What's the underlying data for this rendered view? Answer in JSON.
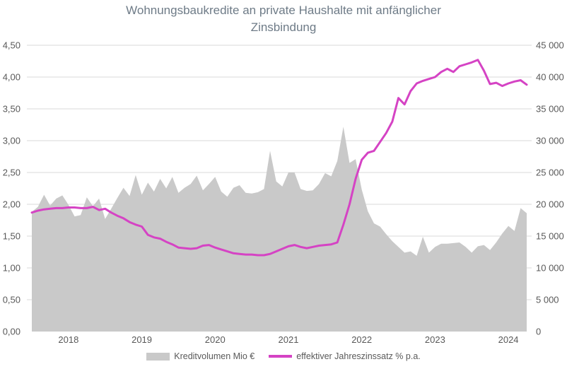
{
  "title": "Wohnungsbaukredite an private Haushalte mit anfänglicher Zinsbindung",
  "title_lines": [
    "Wohnungsbaukredite an private Haushalte mit anfänglicher",
    "Zinsbindung"
  ],
  "colors": {
    "area": "#c9c9c9",
    "line": "#d543c4",
    "grid": "#d9d9d9",
    "axis_text": "#595959",
    "title_text": "#6e7b87"
  },
  "legend": {
    "volume_label": "Kreditvolumen Mio €",
    "rate_label": "effektiver Jahreszinssatz % p.a.",
    "position": "bottom"
  },
  "chart_data": {
    "type": "combo-area-line",
    "x": {
      "granularity": "monthly",
      "months": [
        "2018-01",
        "2018-02",
        "2018-03",
        "2018-04",
        "2018-05",
        "2018-06",
        "2018-07",
        "2018-08",
        "2018-09",
        "2018-10",
        "2018-11",
        "2018-12",
        "2019-01",
        "2019-02",
        "2019-03",
        "2019-04",
        "2019-05",
        "2019-06",
        "2019-07",
        "2019-08",
        "2019-09",
        "2019-10",
        "2019-11",
        "2019-12",
        "2020-01",
        "2020-02",
        "2020-03",
        "2020-04",
        "2020-05",
        "2020-06",
        "2020-07",
        "2020-08",
        "2020-09",
        "2020-10",
        "2020-11",
        "2020-12",
        "2021-01",
        "2021-02",
        "2021-03",
        "2021-04",
        "2021-05",
        "2021-06",
        "2021-07",
        "2021-08",
        "2021-09",
        "2021-10",
        "2021-11",
        "2021-12",
        "2022-01",
        "2022-02",
        "2022-03",
        "2022-04",
        "2022-05",
        "2022-06",
        "2022-07",
        "2022-08",
        "2022-09",
        "2022-10",
        "2022-11",
        "2022-12",
        "2023-01",
        "2023-02",
        "2023-03",
        "2023-04",
        "2023-05",
        "2023-06",
        "2023-07",
        "2023-08",
        "2023-09",
        "2023-10",
        "2023-11",
        "2023-12",
        "2024-01",
        "2024-02",
        "2024-03",
        "2024-04",
        "2024-05",
        "2024-06",
        "2024-07",
        "2024-08",
        "2024-09",
        "2024-10"
      ],
      "tick_labels": [
        {
          "label": "2018",
          "month_index": 6
        },
        {
          "label": "2019",
          "month_index": 18
        },
        {
          "label": "2020",
          "month_index": 30
        },
        {
          "label": "2021",
          "month_index": 42
        },
        {
          "label": "2022",
          "month_index": 54
        },
        {
          "label": "2023",
          "month_index": 66
        },
        {
          "label": "2024",
          "month_index": 78
        }
      ]
    },
    "y_left": {
      "min": 0,
      "max": 4.5,
      "tick_step": 0.5,
      "tick_labels": [
        "0,00",
        "0,50",
        "1,00",
        "1,50",
        "2,00",
        "2,50",
        "3,00",
        "3,50",
        "4,00",
        "4,50"
      ]
    },
    "y_right": {
      "min": 0,
      "max": 45000,
      "tick_step": 5000,
      "tick_labels": [
        "0",
        "5 000",
        "10 000",
        "15 000",
        "20 000",
        "25 000",
        "30 000",
        "35 000",
        "40 000",
        "45 000"
      ]
    },
    "grid": true,
    "legend_position": "bottom",
    "series": [
      {
        "name": "Kreditvolumen Mio €",
        "type": "area",
        "axis": "right",
        "color": "#c9c9c9",
        "values": [
          18800,
          19600,
          21500,
          19800,
          20900,
          21400,
          19900,
          18100,
          18300,
          21100,
          19700,
          20900,
          17700,
          19300,
          21000,
          22600,
          21300,
          24600,
          21500,
          23400,
          22000,
          24000,
          22500,
          24300,
          21800,
          22600,
          23200,
          24500,
          22200,
          23200,
          24300,
          22000,
          21200,
          22600,
          23000,
          21800,
          21700,
          21900,
          22400,
          28400,
          23600,
          22800,
          25000,
          25000,
          22400,
          22100,
          22200,
          23200,
          24900,
          24400,
          26800,
          32200,
          26500,
          27100,
          22300,
          18900,
          17000,
          16500,
          15300,
          14200,
          13300,
          12400,
          12600,
          11900,
          14900,
          12400,
          13300,
          13800,
          13800,
          13900,
          14000,
          13300,
          12400,
          13400,
          13600,
          12800,
          14000,
          15400,
          16600,
          15800,
          19400,
          18600
        ]
      },
      {
        "name": "effektiver Jahreszinssatz % p.a.",
        "type": "line",
        "axis": "left",
        "color": "#d543c4",
        "values": [
          1.87,
          1.9,
          1.92,
          1.93,
          1.94,
          1.94,
          1.95,
          1.95,
          1.94,
          1.94,
          1.96,
          1.91,
          1.93,
          1.87,
          1.82,
          1.78,
          1.72,
          1.68,
          1.65,
          1.52,
          1.48,
          1.46,
          1.41,
          1.37,
          1.32,
          1.31,
          1.3,
          1.31,
          1.35,
          1.36,
          1.32,
          1.29,
          1.26,
          1.23,
          1.22,
          1.21,
          1.21,
          1.2,
          1.2,
          1.22,
          1.26,
          1.3,
          1.34,
          1.36,
          1.33,
          1.31,
          1.33,
          1.35,
          1.36,
          1.37,
          1.4,
          1.68,
          2.0,
          2.4,
          2.7,
          2.81,
          2.84,
          2.98,
          3.12,
          3.3,
          3.67,
          3.57,
          3.78,
          3.9,
          3.94,
          3.97,
          4.0,
          4.08,
          4.13,
          4.08,
          4.17,
          4.2,
          4.23,
          4.27,
          4.1,
          3.89,
          3.91,
          3.86,
          3.9,
          3.93,
          3.95,
          3.88
        ]
      }
    ]
  }
}
